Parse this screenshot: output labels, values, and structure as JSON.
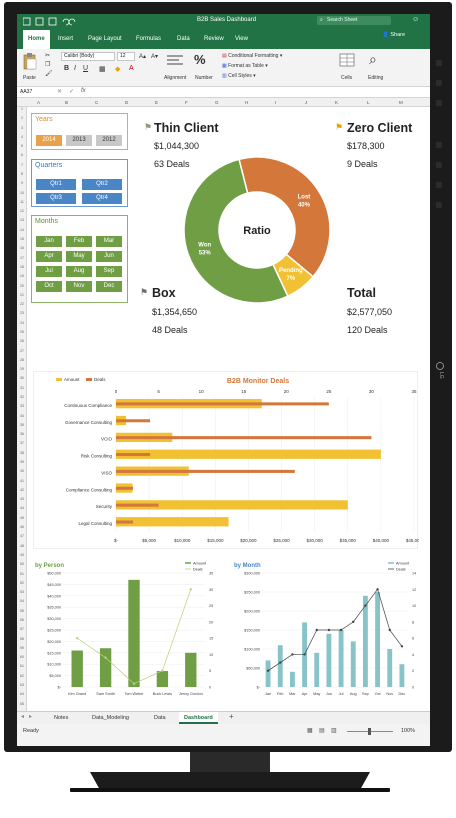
{
  "window": {
    "title": "B2B Sales Dashboard",
    "search_placeholder": "Search Sheet",
    "share_label": "Share"
  },
  "tabs": [
    "Home",
    "Insert",
    "Page Layout",
    "Formulas",
    "Data",
    "Review",
    "View"
  ],
  "ribbon": {
    "paste": "Paste",
    "font_name": "Calibri (Body)",
    "font_size": "12",
    "alignment": "Alignment",
    "number": "Number",
    "conditional": "Conditional Formatting",
    "format_table": "Format as Table",
    "cell_styles": "Cell Styles",
    "cells": "Cells",
    "editing": "Editing",
    "bold": "B",
    "italic": "I",
    "underline": "U",
    "fx": "fx"
  },
  "name_box": "AA37",
  "columns": [
    "A",
    "B",
    "C",
    "D",
    "E",
    "F",
    "G",
    "H",
    "I",
    "J",
    "K",
    "L",
    "M"
  ],
  "slicers": {
    "years": {
      "title": "Years",
      "items": [
        "2014",
        "2013",
        "2012"
      ]
    },
    "quarters": {
      "title": "Quarters",
      "items": [
        "Qtr1",
        "Qtr2",
        "Qtr3",
        "Qtr4"
      ]
    },
    "months": {
      "title": "Months",
      "items": [
        "Jan",
        "Feb",
        "Mar",
        "Apr",
        "May",
        "Jun",
        "Jul",
        "Aug",
        "Sep",
        "Oct",
        "Nov",
        "Dec"
      ]
    }
  },
  "kpis": {
    "thin_client": {
      "label": "Thin Client",
      "amount": "$1,044,300",
      "deals": "63 Deals"
    },
    "zero_client": {
      "label": "Zero Client",
      "amount": "$178,300",
      "deals": "9 Deals"
    },
    "box": {
      "label": "Box",
      "amount": "$1,354,650",
      "deals": "48 Deals"
    },
    "total": {
      "label": "Total",
      "amount": "$2,577,050",
      "deals": "120 Deals"
    }
  },
  "colors": {
    "green": "#6f9e45",
    "orange": "#d3773a",
    "yellow": "#f2c033",
    "blue": "#4a86c5",
    "excel": "#217346"
  },
  "chart_data": [
    {
      "type": "pie",
      "title": "Ratio",
      "categories": [
        "Won",
        "Lost",
        "Pending"
      ],
      "values": [
        53,
        40,
        7
      ],
      "labels": [
        "53%",
        "40%",
        "7%"
      ]
    },
    {
      "type": "bar",
      "title": "B2B Monitor Deals",
      "legend": [
        "Amount",
        "Deals"
      ],
      "categories": [
        "Continuous Compliance",
        "Governance Consulting",
        "VCIO",
        "Risk Consulting",
        "VISO",
        "Compliance Consulting",
        "Security",
        "Legal Consulting"
      ],
      "series": [
        {
          "name": "Amount",
          "values": [
            22000,
            1500,
            8500,
            40000,
            11000,
            2500,
            35000,
            17000
          ]
        },
        {
          "name": "Deals",
          "values": [
            25,
            4,
            30,
            4,
            21,
            2,
            5,
            2
          ]
        }
      ],
      "amount_ticks": [
        "$-",
        "$5,000",
        "$10,000",
        "$15,000",
        "$20,000",
        "$25,000",
        "$30,000",
        "$35,000",
        "$40,000",
        "$45,000"
      ],
      "deals_ticks": [
        "0",
        "5",
        "10",
        "15",
        "20",
        "25",
        "30",
        "35"
      ],
      "amount_lim": [
        0,
        45000
      ],
      "deals_lim": [
        0,
        35
      ]
    },
    {
      "type": "bar",
      "title": "by Person",
      "legend": [
        "Amount",
        "Deals"
      ],
      "categories": [
        "Kim Grand",
        "Sam Smith",
        "Tom Weber",
        "Buck Lewis",
        "Jenny Gordon"
      ],
      "series": [
        {
          "name": "Amount",
          "values": [
            16000,
            17000,
            47000,
            7000,
            15000
          ]
        },
        {
          "name": "Deals",
          "values": [
            15,
            9,
            1,
            5,
            30
          ]
        }
      ],
      "y_ticks": [
        "$-",
        "$5,000",
        "$10,000",
        "$15,000",
        "$20,000",
        "$25,000",
        "$30,000",
        "$35,000",
        "$40,000",
        "$45,000",
        "$50,000"
      ],
      "y2_ticks": [
        "0",
        "5",
        "10",
        "15",
        "20",
        "25",
        "30",
        "35"
      ],
      "ylim": [
        0,
        50000
      ],
      "y2lim": [
        0,
        35
      ]
    },
    {
      "type": "bar",
      "title": "by Month",
      "legend": [
        "Amount",
        "Deals"
      ],
      "categories": [
        "Jan",
        "Feb",
        "Mar",
        "Apr",
        "May",
        "Jun",
        "Jul",
        "Aug",
        "Sep",
        "Oct",
        "Nov",
        "Dec"
      ],
      "series": [
        {
          "name": "Amount",
          "values": [
            70000,
            110000,
            40000,
            170000,
            90000,
            140000,
            150000,
            120000,
            240000,
            250000,
            100000,
            60000
          ]
        },
        {
          "name": "Deals",
          "values": [
            2,
            3,
            4,
            4,
            7,
            7,
            7,
            8,
            10,
            12,
            7,
            5
          ]
        }
      ],
      "y_ticks": [
        "$-",
        "$50,000",
        "$100,000",
        "$150,000",
        "$200,000",
        "$250,000",
        "$300,000"
      ],
      "y2_ticks": [
        "0",
        "2",
        "4",
        "6",
        "8",
        "10",
        "12",
        "14"
      ],
      "ylim": [
        0,
        300000
      ],
      "y2lim": [
        0,
        14
      ]
    }
  ],
  "sheet_tabs": [
    "Notes",
    "Data_Modeling",
    "Data",
    "Dashboard"
  ],
  "status": {
    "ready": "Ready",
    "zoom": "100%"
  }
}
